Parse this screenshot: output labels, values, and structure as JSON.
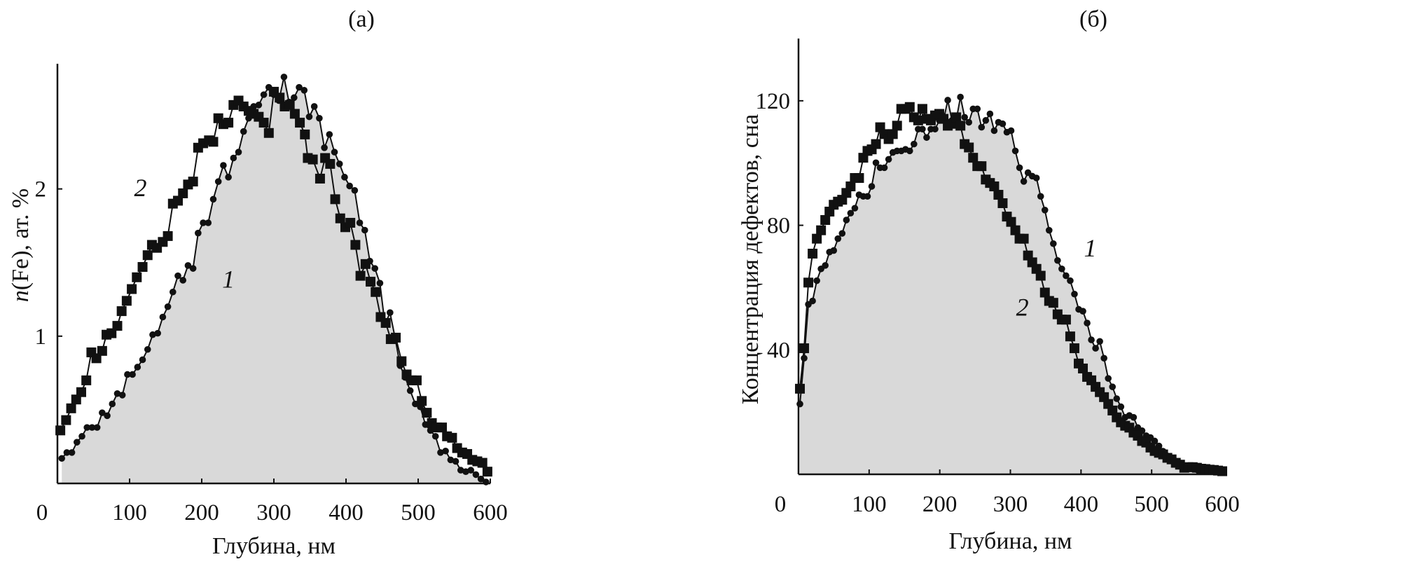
{
  "chart_data": [
    {
      "type": "line",
      "title": "(а)",
      "xlabel": "Глубина, нм",
      "ylabel_italic": "n",
      "ylabel": "(Fe), ат. %",
      "xlim": [
        0,
        600
      ],
      "ylim": [
        0,
        2.85
      ],
      "xticks": [
        0,
        100,
        200,
        300,
        400,
        500,
        600
      ],
      "yticks": [
        1,
        2
      ],
      "grid": false,
      "fill_color": "#d9d9d9",
      "series": [
        {
          "name": "1",
          "marker": "circle",
          "x_start": 6,
          "x_step": 7,
          "values": [
            0.17,
            0.21,
            0.21,
            0.28,
            0.32,
            0.38,
            0.38,
            0.38,
            0.48,
            0.46,
            0.54,
            0.61,
            0.6,
            0.74,
            0.74,
            0.79,
            0.84,
            0.91,
            1.01,
            1.02,
            1.13,
            1.2,
            1.3,
            1.41,
            1.38,
            1.48,
            1.46,
            1.7,
            1.77,
            1.77,
            1.93,
            2.05,
            2.16,
            2.08,
            2.21,
            2.25,
            2.39,
            2.48,
            2.56,
            2.57,
            2.64,
            2.69,
            2.64,
            2.6,
            2.76,
            2.59,
            2.62,
            2.69,
            2.67,
            2.49,
            2.56,
            2.48,
            2.28,
            2.37,
            2.25,
            2.17,
            2.08,
            2.02,
            1.99,
            1.77,
            1.72,
            1.51,
            1.46,
            1.36,
            1.08,
            1.16,
            0.99,
            0.8,
            0.72,
            0.63,
            0.54,
            0.52,
            0.4,
            0.36,
            0.32,
            0.21,
            0.22,
            0.16,
            0.15,
            0.09,
            0.08,
            0.09,
            0.06,
            0.03,
            0.01
          ]
        },
        {
          "name": "2",
          "marker": "square",
          "x": [
            4,
            12,
            19,
            26,
            33,
            40,
            47,
            54,
            62,
            68,
            75,
            83,
            89,
            96,
            103,
            110,
            118,
            125,
            131,
            138,
            146,
            153,
            160,
            167,
            174,
            181,
            188,
            195,
            202,
            210,
            216,
            223,
            230,
            237,
            244,
            251,
            258,
            265,
            272,
            279,
            286,
            293,
            300,
            308,
            315,
            322,
            329,
            336,
            343,
            347,
            354,
            364,
            371,
            378,
            385,
            392,
            399,
            406,
            413,
            420,
            427,
            434,
            441,
            448,
            455,
            462,
            469,
            477,
            484,
            491,
            498,
            505,
            512,
            519,
            526,
            533,
            540,
            547,
            554,
            561,
            568,
            575,
            582,
            589,
            596
          ],
          "values": [
            0.36,
            0.43,
            0.51,
            0.57,
            0.62,
            0.7,
            0.89,
            0.85,
            0.9,
            1.01,
            1.02,
            1.07,
            1.17,
            1.24,
            1.32,
            1.4,
            1.47,
            1.55,
            1.62,
            1.6,
            1.64,
            1.68,
            1.9,
            1.92,
            1.97,
            2.03,
            2.05,
            2.28,
            2.31,
            2.33,
            2.32,
            2.48,
            2.44,
            2.45,
            2.57,
            2.6,
            2.56,
            2.53,
            2.51,
            2.49,
            2.45,
            2.38,
            2.66,
            2.62,
            2.56,
            2.57,
            2.51,
            2.45,
            2.37,
            2.21,
            2.2,
            2.07,
            2.21,
            2.17,
            1.93,
            1.8,
            1.74,
            1.77,
            1.62,
            1.41,
            1.49,
            1.37,
            1.3,
            1.13,
            1.09,
            0.98,
            0.99,
            0.83,
            0.74,
            0.7,
            0.7,
            0.56,
            0.48,
            0.41,
            0.38,
            0.38,
            0.32,
            0.31,
            0.24,
            0.21,
            0.2,
            0.16,
            0.15,
            0.14,
            0.08
          ]
        }
      ],
      "annotations": [
        {
          "text": "2",
          "x": 115,
          "y": 1.95
        },
        {
          "text": "1",
          "x": 237,
          "y": 1.33
        }
      ]
    },
    {
      "type": "line",
      "title": "(б)",
      "xlabel": "Глубина, нм",
      "ylabel": "Концентрация дефектов, сна",
      "xlim": [
        0,
        600
      ],
      "ylim": [
        0,
        140
      ],
      "xticks": [
        0,
        100,
        200,
        300,
        400,
        500,
        600
      ],
      "yticks": [
        40,
        80,
        120
      ],
      "grid": false,
      "fill_color": "#d9d9d9",
      "series": [
        {
          "name": "1",
          "marker": "circle",
          "x_start": 2,
          "x_step": 5.98,
          "values": [
            22.6,
            37.3,
            54.6,
            55.7,
            62.2,
            66.0,
            67.1,
            71.4,
            71.9,
            75.7,
            77.4,
            81.7,
            83.9,
            85.5,
            89.8,
            89.3,
            89.3,
            92.5,
            100.1,
            98.5,
            98.5,
            101.2,
            103.4,
            103.9,
            103.9,
            104.4,
            103.9,
            106.1,
            110.9,
            110.9,
            108.2,
            110.9,
            110.9,
            113.7,
            113.7,
            120.2,
            113.7,
            113.7,
            121.2,
            114.7,
            113.1,
            117.4,
            117.4,
            111.5,
            113.7,
            115.8,
            110.4,
            113.1,
            112.6,
            109.9,
            110.4,
            103.9,
            98.5,
            94.1,
            96.9,
            95.8,
            95.2,
            89.3,
            84.9,
            78.4,
            74.1,
            68.7,
            66.0,
            63.8,
            62.2,
            57.9,
            53.0,
            52.4,
            48.6,
            43.2,
            40.5,
            42.7,
            37.3,
            30.8,
            28.1,
            24.3,
            21.7,
            18.3,
            18.9,
            18.3,
            15.0,
            14.0,
            12.4,
            11.8,
            10.7,
            9.1,
            7.4,
            5.9,
            5.3,
            4.2,
            3.1,
            2.6,
            2.1,
            1.8,
            1.5,
            1.2,
            1.0,
            1.0,
            0.8,
            0.7,
            0.7
          ]
        },
        {
          "name": "2",
          "marker": "square",
          "x_start": 2,
          "x_step": 5.98,
          "values": [
            27.5,
            40.5,
            61.6,
            70.9,
            75.7,
            78.4,
            81.7,
            84.4,
            86.6,
            87.6,
            88.2,
            90.4,
            92.5,
            95.2,
            95.2,
            101.7,
            103.9,
            104.4,
            106.1,
            111.5,
            109.3,
            107.7,
            109.3,
            112.0,
            117.4,
            117.4,
            118.0,
            114.7,
            113.7,
            117.4,
            114.2,
            113.7,
            115.3,
            115.8,
            114.2,
            112.0,
            112.6,
            114.7,
            112.0,
            106.1,
            105.0,
            101.7,
            99.0,
            99.0,
            94.7,
            93.6,
            92.5,
            89.8,
            87.1,
            82.8,
            81.1,
            78.4,
            75.7,
            75.7,
            70.3,
            68.1,
            66.0,
            63.8,
            58.4,
            55.7,
            55.1,
            51.4,
            49.7,
            49.7,
            44.3,
            40.5,
            35.6,
            34.0,
            31.3,
            30.2,
            28.1,
            26.4,
            24.8,
            22.6,
            20.5,
            18.3,
            16.7,
            15.6,
            15.0,
            13.4,
            12.4,
            10.7,
            10.2,
            8.6,
            7.5,
            6.9,
            6.4,
            5.3,
            4.8,
            3.7,
            3.1,
            2.1,
            2.3,
            2.3,
            2.1,
            1.8,
            1.7,
            1.5,
            1.4,
            1.2,
            1.0
          ]
        }
      ],
      "annotations": [
        {
          "text": "1",
          "x": 413,
          "y": 70
        },
        {
          "text": "2",
          "x": 317,
          "y": 51
        }
      ]
    }
  ]
}
